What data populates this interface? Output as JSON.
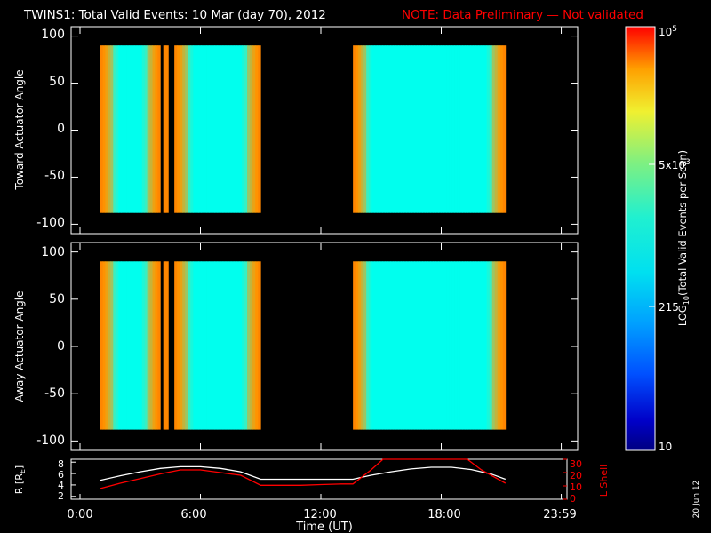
{
  "title": {
    "main": "TWINS1: Total Valid Events: 10 Mar (day  70), 2012",
    "note": "NOTE: Data Preliminary — Not validated"
  },
  "stamp": "20 Jun 12",
  "colors": {
    "background": "#000000",
    "axes": "#ffffff",
    "note": "#ff0000",
    "l_shell": "#ff0000",
    "radius": "#ffffff",
    "low": "#00ffee",
    "high": "#ff9900"
  },
  "colorbar": {
    "label": "LOG10(Total Valid Events per Scan)",
    "label_main": "LOG",
    "label_sub": "10",
    "label_rest": "(Total Valid Events per Scan)",
    "ticks": [
      {
        "value": 10,
        "base": "10",
        "exp": ""
      },
      {
        "value": 215,
        "base": "215",
        "exp": ""
      },
      {
        "value": 5000,
        "base": "5x10",
        "exp": "3"
      },
      {
        "value": 100000,
        "base": "10",
        "exp": "5"
      }
    ],
    "range": [
      10,
      100000
    ],
    "scale": "log"
  },
  "chart_data": [
    {
      "type": "heatmap",
      "panel": "toward",
      "ylabel": "Toward Actuator Angle",
      "yticks": [
        "100",
        "50",
        "0",
        "-50",
        "-100"
      ],
      "ylim": [
        -110,
        110
      ],
      "xlim": [
        0,
        24
      ],
      "angle_range": [
        -88,
        90
      ],
      "data_segments": [
        [
          1.0,
          4.0
        ],
        [
          4.15,
          4.4
        ],
        [
          4.7,
          9.0
        ],
        [
          13.6,
          21.2
        ]
      ]
    },
    {
      "type": "heatmap",
      "panel": "away",
      "ylabel": "Away Actuator Angle",
      "yticks": [
        "100",
        "50",
        "0",
        "-50",
        "-100"
      ],
      "ylim": [
        -110,
        110
      ],
      "xlim": [
        0,
        24
      ],
      "angle_range": [
        -88,
        90
      ],
      "data_segments": [
        [
          1.0,
          4.0
        ],
        [
          4.15,
          4.4
        ],
        [
          4.7,
          9.0
        ],
        [
          13.6,
          21.2
        ]
      ]
    },
    {
      "type": "line",
      "panel": "ephemeris",
      "xlabel": "Time (UT)",
      "x_ticks": [
        "0:00",
        "6:00",
        "12:00",
        "18:00",
        "23:59"
      ],
      "x_tick_hours": [
        0,
        6,
        12,
        18,
        23.98
      ],
      "xlim": [
        0,
        24
      ],
      "left_axis": {
        "label": "R [RE]",
        "label_main": "R [R",
        "label_sub": "E",
        "label_end": "]",
        "ticks": [
          "8",
          "6",
          "4",
          "2"
        ],
        "range": [
          1.5,
          8.5
        ]
      },
      "right_axis": {
        "label": "L Shell",
        "ticks": [
          "30",
          "20",
          "10",
          "0"
        ],
        "range": [
          0,
          30
        ]
      },
      "series": [
        {
          "name": "R [RE]",
          "axis": "left",
          "x": [
            1.0,
            2.0,
            3.0,
            4.0,
            5.0,
            6.0,
            7.0,
            8.0,
            9.0,
            10.0,
            11.0,
            12.0,
            13.0,
            13.6,
            14.5,
            15.5,
            16.5,
            17.5,
            18.5,
            19.5,
            20.5,
            21.2
          ],
          "y": [
            4.8,
            5.6,
            6.3,
            6.9,
            7.2,
            7.2,
            6.9,
            6.3,
            5.0,
            5.0,
            5.0,
            5.0,
            5.0,
            5.0,
            5.7,
            6.3,
            6.8,
            7.1,
            7.1,
            6.7,
            5.9,
            5.0
          ]
        },
        {
          "name": "L Shell",
          "axis": "right",
          "x": [
            1.0,
            2.0,
            3.0,
            4.0,
            5.0,
            6.0,
            7.0,
            8.0,
            9.0,
            10.0,
            11.0,
            12.0,
            13.0,
            13.6,
            14.5,
            15.1,
            15.6,
            19.3,
            20.0,
            21.2
          ],
          "y": [
            8.0,
            12.0,
            15.5,
            19.0,
            22.0,
            22.0,
            20.0,
            18.0,
            10.5,
            10.5,
            10.5,
            11.0,
            11.5,
            11.5,
            22.0,
            30.0,
            30.0,
            30.0,
            22.0,
            12.0
          ]
        }
      ]
    }
  ]
}
